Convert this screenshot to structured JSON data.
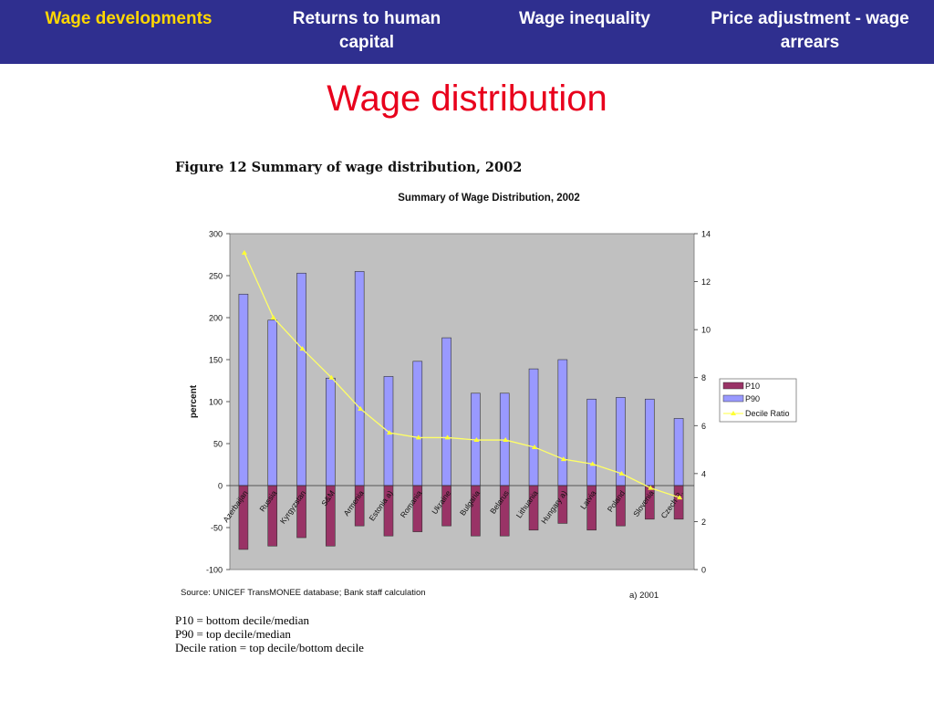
{
  "nav": {
    "items": [
      {
        "label": "Wage developments",
        "active": true
      },
      {
        "label": "Returns to human capital",
        "active": false
      },
      {
        "label": "Wage inequality",
        "active": false
      },
      {
        "label": "Price adjustment - wage arrears",
        "active": false
      }
    ]
  },
  "slide": {
    "title": "Wage distribution"
  },
  "figure": {
    "caption": "Figure 12  Summary of wage distribution, 2002",
    "source": "UNICEF TransMONEE database; Bank staff calculation",
    "footnote": "a) 2001",
    "notes": [
      "P10 = bottom decile/median",
      "P90 = top decile/median",
      "Decile ration = top decile/bottom decile"
    ]
  },
  "chart_data": {
    "type": "bar",
    "title": "Summary of Wage Distribution, 2002",
    "ylabel": "percent",
    "ylim": [
      -100,
      300
    ],
    "y2lim": [
      0,
      14
    ],
    "yticks": [
      300,
      250,
      200,
      150,
      100,
      50,
      0,
      -50,
      -100
    ],
    "y2ticks": [
      14,
      12,
      10,
      8,
      6,
      4,
      2,
      0
    ],
    "grid": false,
    "legend_position": "right",
    "categories": [
      "Azerbaijan",
      "Russia",
      "Kyrgyzstan",
      "S&M",
      "Armenia",
      "Estonia a)",
      "Romania",
      "Ukraine",
      "Bulgaria",
      "Belarus",
      "Lithuania",
      "Hungary a)",
      "Latvia",
      "Poland",
      "Slovenia",
      "Czech R."
    ],
    "series": [
      {
        "name": "P10",
        "type": "bar",
        "axis": "left",
        "color": "#993366",
        "values": [
          -76,
          -72,
          -62,
          -72,
          -48,
          -60,
          -55,
          -48,
          -60,
          -60,
          -53,
          -45,
          -53,
          -48,
          -40,
          -40
        ]
      },
      {
        "name": "P90",
        "type": "bar",
        "axis": "left",
        "color": "#9999ff",
        "values": [
          228,
          197,
          253,
          128,
          255,
          130,
          148,
          176,
          110,
          110,
          139,
          150,
          103,
          105,
          103,
          80
        ]
      },
      {
        "name": "Decile Ratio",
        "type": "line",
        "axis": "right",
        "color": "#ffff66",
        "values": [
          13.2,
          10.5,
          9.2,
          8.0,
          6.7,
          5.7,
          5.5,
          5.5,
          5.4,
          5.4,
          5.1,
          4.6,
          4.4,
          4.0,
          3.4,
          3.0
        ]
      }
    ]
  },
  "colors": {
    "nav_bg": "#2f2f8f",
    "nav_active": "#ffd700",
    "title": "#e8001c",
    "plot_bg": "#c0c0c0"
  }
}
